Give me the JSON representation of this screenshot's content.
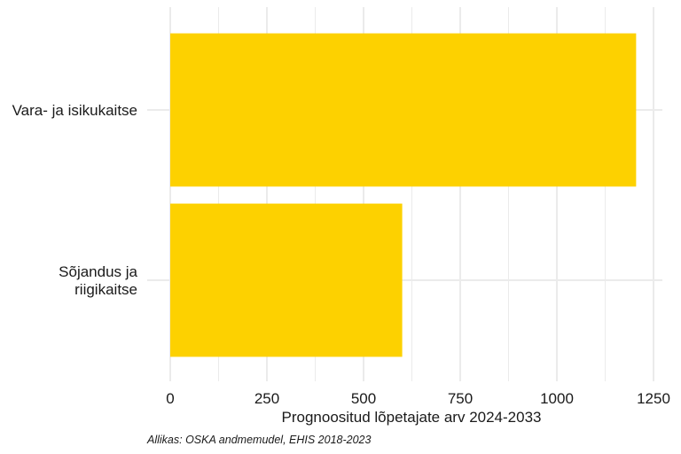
{
  "chart_data": {
    "type": "bar",
    "orientation": "horizontal",
    "categories": [
      "Vara- ja isikukaitse",
      "Sõjandus ja riigikaitse"
    ],
    "category_label_lines": [
      [
        "Vara- ja isikukaitse"
      ],
      [
        "Sõjandus ja",
        "riigikaitse"
      ]
    ],
    "values": [
      1205,
      600
    ],
    "xlabel": "Prognoositud lõpetajate arv 2024-2033",
    "ylabel": "",
    "xlim": [
      0,
      1250
    ],
    "x_ticks": [
      0,
      250,
      500,
      750,
      1000,
      1250
    ],
    "x_tick_labels": [
      "0",
      "250",
      "500",
      "750",
      "1000",
      "1250"
    ],
    "grid": true,
    "caption": "Allikas: OSKA andmemudel, EHIS 2018-2023",
    "colors": {
      "bar": "#FDD100",
      "grid": "#EBEBEB",
      "text": "#1A1A1A"
    }
  }
}
